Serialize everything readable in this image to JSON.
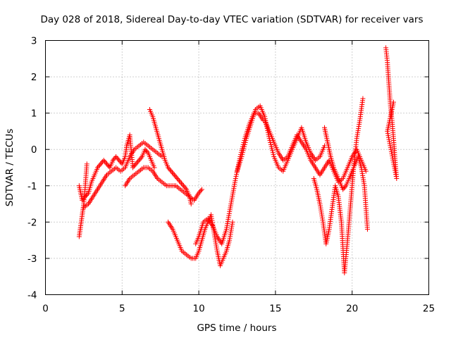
{
  "chart_data": {
    "type": "scatter",
    "title": "Day 028 of 2018, Sidereal Day-to-day VTEC variation (SDTVAR) for receiver vars",
    "xlabel": "GPS time / hours",
    "ylabel": "SDTVAR / TECUs",
    "xlim": [
      0,
      25
    ],
    "ylim": [
      -4,
      3
    ],
    "xticks": [
      "0",
      "5",
      "10",
      "15",
      "20",
      "25"
    ],
    "yticks": [
      "-4",
      "-3",
      "-2",
      "-1",
      "0",
      "1",
      "2",
      "3"
    ],
    "grid": true,
    "marker": "+",
    "marker_color": "#ff0000",
    "series": [
      {
        "name": "vars",
        "segments": [
          {
            "x": [
              2.2,
              2.3,
              2.4,
              2.5,
              2.6,
              2.7
            ],
            "y": [
              -2.4,
              -2.1,
              -1.8,
              -1.5,
              -1.0,
              -0.4
            ]
          },
          {
            "x": [
              2.2,
              2.4,
              2.6,
              2.8,
              3.0,
              3.2,
              3.4,
              3.6,
              3.8,
              4.0,
              4.2,
              4.4,
              4.6,
              4.8,
              5.0,
              5.2,
              5.3,
              5.5,
              5.7,
              5.9,
              6.1,
              6.3,
              6.5,
              6.7,
              6.9,
              7.1
            ],
            "y": [
              -1.0,
              -1.4,
              -1.3,
              -1.2,
              -0.9,
              -0.7,
              -0.5,
              -0.4,
              -0.3,
              -0.4,
              -0.5,
              -0.3,
              -0.2,
              -0.3,
              -0.4,
              -0.2,
              0.1,
              0.4,
              -0.5,
              -0.4,
              -0.3,
              -0.2,
              0.0,
              -0.1,
              -0.3,
              -0.5
            ]
          },
          {
            "x": [
              2.5,
              2.8,
              3.1,
              3.4,
              3.7,
              4.0,
              4.3,
              4.6,
              4.9,
              5.2,
              5.5,
              5.8,
              6.1,
              6.4,
              6.7,
              7.0,
              7.3,
              7.6
            ],
            "y": [
              -1.6,
              -1.5,
              -1.3,
              -1.1,
              -0.9,
              -0.7,
              -0.6,
              -0.5,
              -0.6,
              -0.5,
              -0.2,
              0.0,
              0.1,
              0.2,
              0.1,
              0.0,
              -0.1,
              -0.2
            ]
          },
          {
            "x": [
              5.2,
              5.5,
              5.8,
              6.1,
              6.4,
              6.7,
              7.0,
              7.3,
              7.6,
              7.9,
              8.2,
              8.5,
              8.8,
              9.1,
              9.4,
              9.7,
              10.0,
              10.2
            ],
            "y": [
              -1.0,
              -0.8,
              -0.7,
              -0.6,
              -0.5,
              -0.5,
              -0.6,
              -0.8,
              -0.9,
              -1.0,
              -1.0,
              -1.0,
              -1.1,
              -1.2,
              -1.3,
              -1.4,
              -1.2,
              -1.1
            ]
          },
          {
            "x": [
              6.8,
              7.0,
              7.2,
              7.4,
              7.6,
              7.8,
              8.0,
              8.2,
              8.4,
              8.6,
              8.8,
              9.0,
              9.2,
              9.4,
              9.5
            ],
            "y": [
              1.1,
              0.9,
              0.6,
              0.3,
              0.0,
              -0.3,
              -0.5,
              -0.6,
              -0.7,
              -0.8,
              -0.9,
              -1.0,
              -1.1,
              -1.3,
              -1.5
            ]
          },
          {
            "x": [
              8.0,
              8.3,
              8.6,
              8.9,
              9.2,
              9.5,
              9.8,
              10.0,
              10.2,
              10.4,
              10.6,
              10.8,
              11.0,
              11.2,
              11.4,
              11.6,
              11.8,
              12.0,
              12.2
            ],
            "y": [
              -2.0,
              -2.2,
              -2.5,
              -2.8,
              -2.9,
              -3.0,
              -3.0,
              -2.8,
              -2.5,
              -2.2,
              -2.0,
              -1.8,
              -2.3,
              -2.8,
              -3.2,
              -3.0,
              -2.8,
              -2.5,
              -2.0
            ]
          },
          {
            "x": [
              9.8,
              10.0,
              10.3,
              10.6,
              10.9,
              11.2,
              11.5,
              11.8,
              12.1,
              12.4,
              12.7,
              13.0,
              13.3,
              13.6,
              13.9,
              14.2
            ],
            "y": [
              -2.6,
              -2.4,
              -2.0,
              -1.9,
              -2.1,
              -2.4,
              -2.6,
              -2.2,
              -1.5,
              -0.8,
              -0.2,
              0.3,
              0.7,
              1.0,
              1.0,
              0.8
            ]
          },
          {
            "x": [
              12.5,
              12.8,
              13.1,
              13.4,
              13.7,
              14.0,
              14.3,
              14.6,
              14.9,
              15.2,
              15.5,
              15.8,
              16.1,
              16.4,
              16.7,
              17.0,
              17.3,
              17.6,
              17.9,
              18.2
            ],
            "y": [
              -0.6,
              -0.2,
              0.3,
              0.7,
              1.1,
              1.2,
              0.9,
              0.3,
              -0.2,
              -0.5,
              -0.6,
              -0.3,
              0.0,
              0.3,
              0.6,
              0.2,
              -0.1,
              -0.3,
              -0.2,
              0.1
            ]
          },
          {
            "x": [
              14.3,
              14.6,
              14.9,
              15.2,
              15.5,
              15.8,
              16.1,
              16.4,
              16.7,
              17.0,
              17.3,
              17.6,
              17.9,
              18.2,
              18.5,
              18.8,
              19.1,
              19.4,
              19.7,
              20.0,
              20.3,
              20.6,
              20.9
            ],
            "y": [
              0.8,
              0.5,
              0.2,
              -0.1,
              -0.3,
              -0.2,
              0.1,
              0.4,
              0.2,
              0.0,
              -0.3,
              -0.5,
              -0.7,
              -0.5,
              -0.3,
              -0.6,
              -0.9,
              -0.8,
              -0.5,
              -0.2,
              0.0,
              -0.3,
              -0.6
            ]
          },
          {
            "x": [
              17.5,
              17.7,
              17.9,
              18.1,
              18.3,
              18.5,
              18.7,
              18.9,
              19.1,
              19.3,
              19.5,
              19.7,
              19.9,
              20.1,
              20.3,
              20.5,
              20.7
            ],
            "y": [
              -0.8,
              -1.1,
              -1.5,
              -2.0,
              -2.6,
              -2.2,
              -1.6,
              -1.0,
              -1.3,
              -2.0,
              -3.4,
              -2.5,
              -1.5,
              -0.5,
              0.3,
              0.8,
              1.4
            ]
          },
          {
            "x": [
              18.2,
              18.4,
              18.6,
              18.8,
              19.0,
              19.2,
              19.4,
              19.6,
              19.8,
              20.0,
              20.2,
              20.4,
              20.6,
              20.8,
              21.0
            ],
            "y": [
              0.6,
              0.2,
              -0.2,
              -0.5,
              -0.7,
              -0.9,
              -1.1,
              -1.0,
              -0.8,
              -0.6,
              -0.4,
              -0.2,
              -0.5,
              -1.0,
              -2.2
            ]
          },
          {
            "x": [
              22.2,
              22.3,
              22.4,
              22.5,
              22.6,
              22.7,
              22.8,
              22.9,
              22.3,
              22.5,
              22.7
            ],
            "y": [
              2.8,
              2.4,
              1.8,
              1.2,
              0.8,
              0.3,
              -0.3,
              -0.8,
              0.5,
              0.9,
              1.3
            ]
          }
        ]
      }
    ]
  }
}
